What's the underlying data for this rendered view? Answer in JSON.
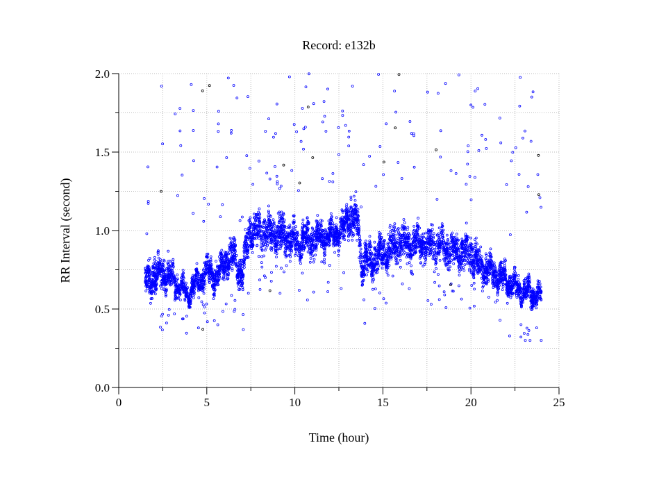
{
  "chart_data": {
    "type": "scatter",
    "title": "Record:  e132b",
    "xlabel": "Time (hour)",
    "ylabel": "RR Interval (second)",
    "xlim": [
      0,
      25
    ],
    "ylim": [
      0.0,
      2.0
    ],
    "x_ticks": [
      "0",
      "5",
      "10",
      "15",
      "20",
      "25"
    ],
    "y_ticks": [
      "0.0",
      "0.5",
      "1.0",
      "1.5",
      "2.0"
    ],
    "grid": true,
    "marker": "open-circle",
    "point_color": "#0000ff",
    "x_range_of_data": [
      1.5,
      24.0
    ],
    "trend_note": "estimated band center and half-width (seconds) per hour",
    "trend": [
      {
        "x": 1.5,
        "center": 0.67,
        "halfwidth": 0.09
      },
      {
        "x": 2.0,
        "center": 0.72,
        "halfwidth": 0.11
      },
      {
        "x": 2.5,
        "center": 0.72,
        "halfwidth": 0.1
      },
      {
        "x": 3.0,
        "center": 0.7,
        "halfwidth": 0.1
      },
      {
        "x": 3.5,
        "center": 0.63,
        "halfwidth": 0.06
      },
      {
        "x": 4.0,
        "center": 0.6,
        "halfwidth": 0.05
      },
      {
        "x": 4.4,
        "center": 0.66,
        "halfwidth": 0.08
      },
      {
        "x": 5.0,
        "center": 0.74,
        "halfwidth": 0.08
      },
      {
        "x": 5.6,
        "center": 0.7,
        "halfwidth": 0.08
      },
      {
        "x": 6.0,
        "center": 0.8,
        "halfwidth": 0.1
      },
      {
        "x": 6.6,
        "center": 0.84,
        "halfwidth": 0.1
      },
      {
        "x": 7.0,
        "center": 0.7,
        "halfwidth": 0.1
      },
      {
        "x": 7.4,
        "center": 0.98,
        "halfwidth": 0.1
      },
      {
        "x": 8.0,
        "center": 1.0,
        "halfwidth": 0.1
      },
      {
        "x": 9.0,
        "center": 0.97,
        "halfwidth": 0.12
      },
      {
        "x": 10.0,
        "center": 0.94,
        "halfwidth": 0.1
      },
      {
        "x": 11.0,
        "center": 0.94,
        "halfwidth": 0.1
      },
      {
        "x": 12.0,
        "center": 0.97,
        "halfwidth": 0.08
      },
      {
        "x": 12.8,
        "center": 1.0,
        "halfwidth": 0.08
      },
      {
        "x": 13.0,
        "center": 1.1,
        "halfwidth": 0.1
      },
      {
        "x": 13.6,
        "center": 1.05,
        "halfwidth": 0.12
      },
      {
        "x": 13.8,
        "center": 0.78,
        "halfwidth": 0.1
      },
      {
        "x": 15.0,
        "center": 0.85,
        "halfwidth": 0.1
      },
      {
        "x": 16.0,
        "center": 0.92,
        "halfwidth": 0.12
      },
      {
        "x": 17.0,
        "center": 0.92,
        "halfwidth": 0.1
      },
      {
        "x": 18.0,
        "center": 0.9,
        "halfwidth": 0.1
      },
      {
        "x": 19.0,
        "center": 0.88,
        "halfwidth": 0.1
      },
      {
        "x": 20.0,
        "center": 0.85,
        "halfwidth": 0.12
      },
      {
        "x": 20.5,
        "center": 0.78,
        "halfwidth": 0.1
      },
      {
        "x": 21.0,
        "center": 0.75,
        "halfwidth": 0.08
      },
      {
        "x": 22.0,
        "center": 0.68,
        "halfwidth": 0.08
      },
      {
        "x": 23.0,
        "center": 0.61,
        "halfwidth": 0.07
      },
      {
        "x": 24.0,
        "center": 0.58,
        "halfwidth": 0.06
      }
    ],
    "outlier_range": [
      0.25,
      2.0
    ]
  }
}
